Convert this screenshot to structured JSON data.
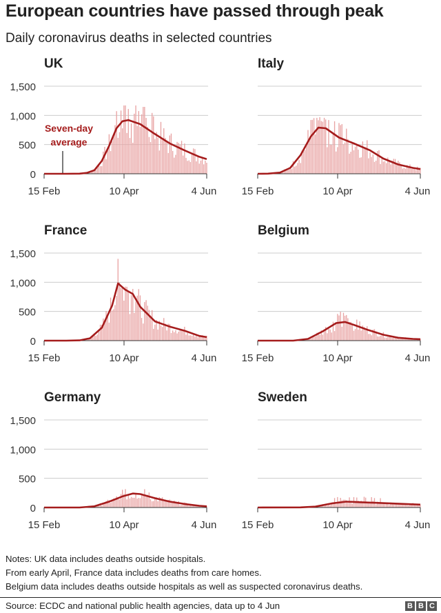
{
  "title": "European countries have passed through peak",
  "subtitle": "Daily coronavirus deaths in selected countries",
  "colors": {
    "bar": "#e8a2a2",
    "line": "#a51c1c",
    "grid": "#cccccc",
    "annotation": "#a51c1c"
  },
  "annotation": {
    "line1": "Seven-day",
    "line2": "average"
  },
  "notes": [
    "Notes: UK data includes deaths outside hospitals.",
    "From early April, France data includes deaths from care homes.",
    "Belgium data includes deaths outside hospitals as well as suspected coronavirus deaths."
  ],
  "source": "Source: ECDC and national public health agencies, data up to 4 Jun",
  "logo": [
    "B",
    "B",
    "C"
  ],
  "chart_data": [
    {
      "type": "bar",
      "title": "UK",
      "x_ticks": [
        "15 Feb",
        "10 Apr",
        "4 Jun"
      ],
      "y_ticks": [
        "1,500",
        "1,000",
        "500",
        "0"
      ],
      "ylim": [
        0,
        1500
      ],
      "xlim": [
        "15 Feb",
        "4 Jun"
      ],
      "series": [
        {
          "name": "Seven-day average",
          "x": [
            "15 Feb",
            "1 Mar",
            "10 Mar",
            "15 Mar",
            "20 Mar",
            "25 Mar",
            "30 Mar",
            "4 Apr",
            "8 Apr",
            "12 Apr",
            "20 Apr",
            "30 Apr",
            "10 May",
            "20 May",
            "30 May",
            "4 Jun"
          ],
          "y": [
            0,
            0,
            2,
            15,
            60,
            220,
            480,
            780,
            900,
            920,
            850,
            680,
            520,
            400,
            290,
            250
          ]
        }
      ],
      "daily_peak": 1170
    },
    {
      "type": "bar",
      "title": "Italy",
      "x_ticks": [
        "15 Feb",
        "10 Apr",
        "4 Jun"
      ],
      "y_ticks": [],
      "ylim": [
        0,
        1500
      ],
      "xlim": [
        "15 Feb",
        "4 Jun"
      ],
      "series": [
        {
          "name": "Seven-day average",
          "x": [
            "15 Feb",
            "22 Feb",
            "1 Mar",
            "8 Mar",
            "15 Mar",
            "22 Mar",
            "27 Mar",
            "1 Apr",
            "10 Apr",
            "20 Apr",
            "1 May",
            "10 May",
            "20 May",
            "30 May",
            "4 Jun"
          ],
          "y": [
            0,
            2,
            20,
            100,
            320,
            640,
            790,
            780,
            620,
            520,
            400,
            260,
            160,
            100,
            80
          ]
        }
      ],
      "daily_peak": 970
    },
    {
      "type": "bar",
      "title": "France",
      "x_ticks": [
        "15 Feb",
        "10 Apr",
        "4 Jun"
      ],
      "y_ticks": [
        "1,500",
        "1,000",
        "500",
        "0"
      ],
      "ylim": [
        0,
        1500
      ],
      "xlim": [
        "15 Feb",
        "4 Jun"
      ],
      "series": [
        {
          "name": "Seven-day average",
          "x": [
            "15 Feb",
            "1 Mar",
            "10 Mar",
            "17 Mar",
            "25 Mar",
            "1 Apr",
            "5 Apr",
            "10 Apr",
            "15 Apr",
            "20 Apr",
            "30 Apr",
            "10 May",
            "20 May",
            "30 May",
            "4 Jun"
          ],
          "y": [
            0,
            0,
            5,
            40,
            220,
            600,
            980,
            870,
            800,
            580,
            330,
            240,
            170,
            80,
            60
          ]
        }
      ],
      "daily_peak": 1440
    },
    {
      "type": "bar",
      "title": "Belgium",
      "x_ticks": [
        "15 Feb",
        "10 Apr",
        "4 Jun"
      ],
      "y_ticks": [],
      "ylim": [
        0,
        1500
      ],
      "xlim": [
        "15 Feb",
        "4 Jun"
      ],
      "series": [
        {
          "name": "Seven-day average",
          "x": [
            "15 Feb",
            "10 Mar",
            "20 Mar",
            "30 Mar",
            "8 Apr",
            "14 Apr",
            "20 Apr",
            "30 Apr",
            "10 May",
            "20 May",
            "30 May",
            "4 Jun"
          ],
          "y": [
            0,
            0,
            30,
            160,
            300,
            320,
            270,
            180,
            100,
            50,
            30,
            25
          ]
        }
      ],
      "daily_peak": 500
    },
    {
      "type": "bar",
      "title": "Germany",
      "x_ticks": [
        "15 Feb",
        "10 Apr",
        "4 Jun"
      ],
      "y_ticks": [
        "1,500",
        "1,000",
        "500",
        "0"
      ],
      "ylim": [
        0,
        1500
      ],
      "xlim": [
        "15 Feb",
        "4 Jun"
      ],
      "series": [
        {
          "name": "Seven-day average",
          "x": [
            "15 Feb",
            "10 Mar",
            "20 Mar",
            "30 Mar",
            "8 Apr",
            "15 Apr",
            "20 Apr",
            "30 Apr",
            "10 May",
            "20 May",
            "30 May",
            "4 Jun"
          ],
          "y": [
            0,
            0,
            20,
            100,
            190,
            240,
            230,
            160,
            100,
            60,
            30,
            20
          ]
        }
      ],
      "daily_peak": 315
    },
    {
      "type": "bar",
      "title": "Sweden",
      "x_ticks": [
        "15 Feb",
        "10 Apr",
        "4 Jun"
      ],
      "y_ticks": [],
      "ylim": [
        0,
        1500
      ],
      "xlim": [
        "15 Feb",
        "4 Jun"
      ],
      "series": [
        {
          "name": "Seven-day average",
          "x": [
            "15 Feb",
            "15 Mar",
            "25 Mar",
            "5 Apr",
            "15 Apr",
            "25 Apr",
            "5 May",
            "15 May",
            "25 May",
            "4 Jun"
          ],
          "y": [
            0,
            2,
            15,
            70,
            100,
            90,
            80,
            70,
            60,
            50
          ]
        }
      ],
      "daily_peak": 185
    }
  ]
}
